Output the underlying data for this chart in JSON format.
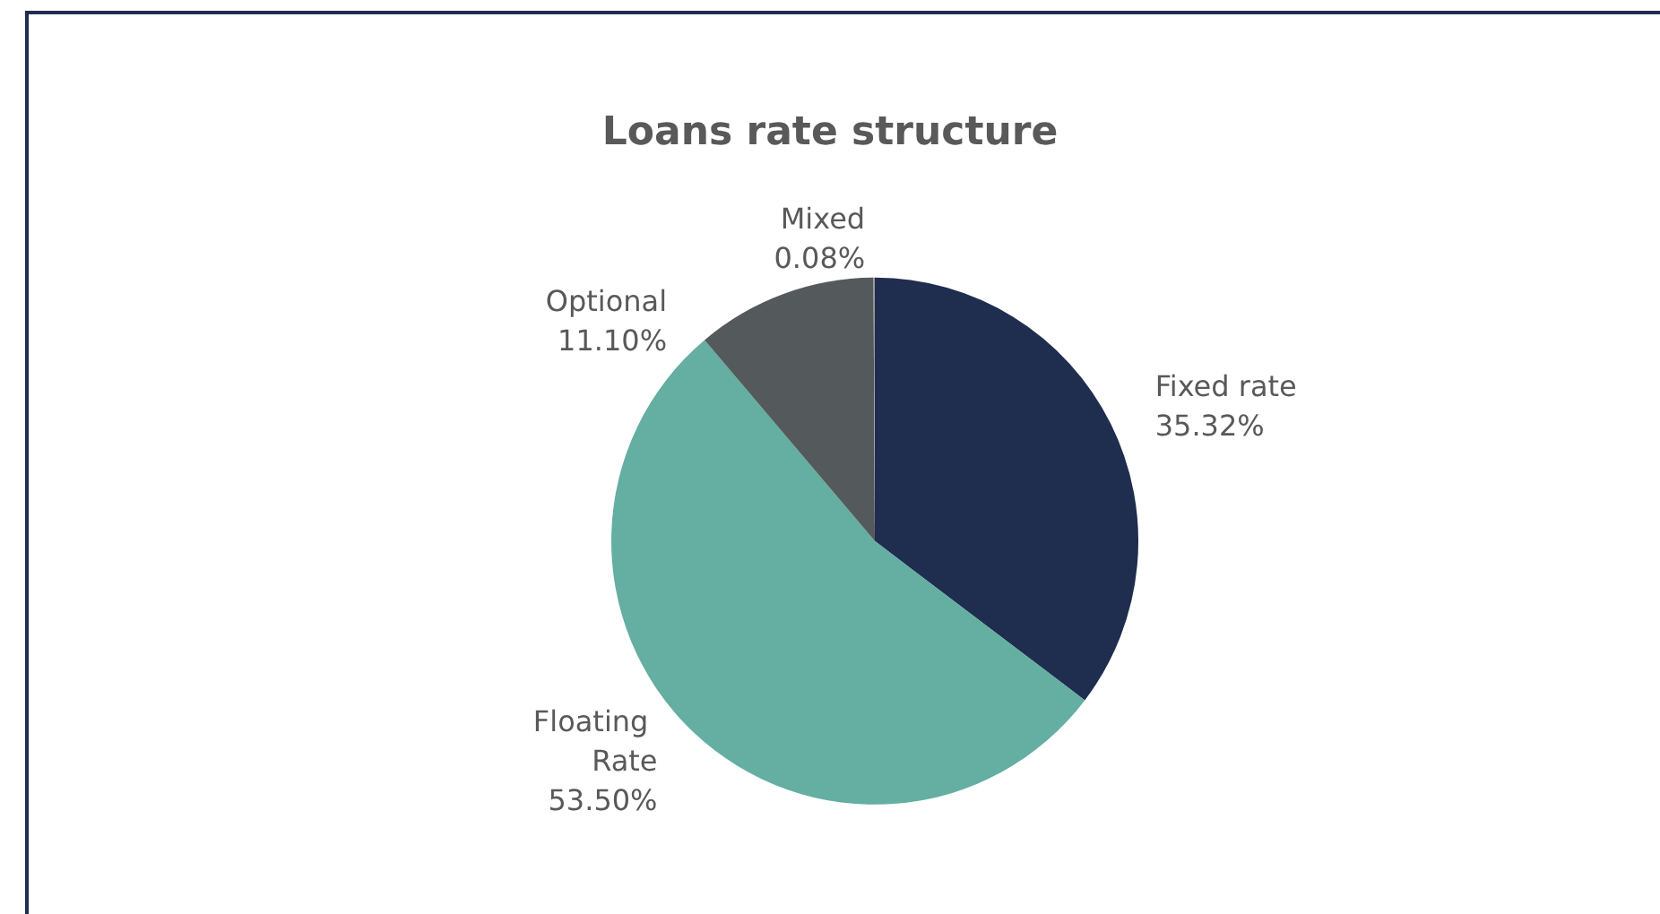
{
  "chart_data": {
    "type": "pie",
    "title": "Loans rate structure",
    "categories": [
      "Fixed rate",
      "Floating Rate",
      "Optional",
      "Mixed"
    ],
    "values": [
      35.32,
      53.5,
      11.1,
      0.08
    ],
    "colors": [
      "#1f2d4e",
      "#64aea2",
      "#545a5b",
      "#9a9a9a"
    ],
    "value_labels": [
      "35.32%",
      "53.50%",
      "11.10%",
      "0.08%"
    ],
    "legend": false
  }
}
